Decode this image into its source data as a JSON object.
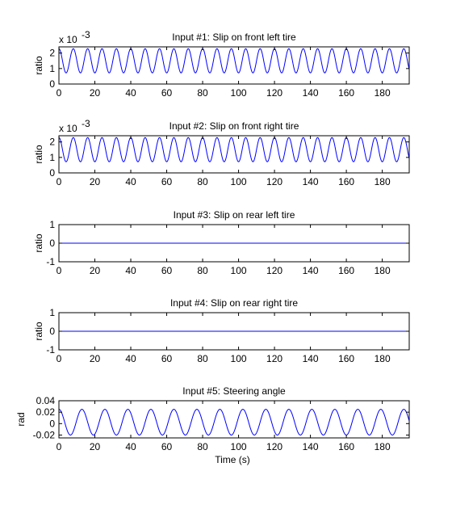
{
  "chart_data": [
    {
      "type": "line",
      "title": "Input #1: Slip on front left tire",
      "ylabel": "ratio",
      "xlabel": "",
      "exponent_label": "x 10",
      "exponent_power": "-3",
      "xlim": [
        0,
        195
      ],
      "ylim": [
        0,
        2.4
      ],
      "xticks": [
        0,
        20,
        40,
        60,
        80,
        100,
        120,
        140,
        160,
        180
      ],
      "yticks": [
        0,
        1,
        2
      ],
      "series": [
        {
          "color": "#0000ff",
          "waveform": {
            "kind": "sine",
            "offset": 1.5,
            "amplitude": 0.78,
            "period": 8.0,
            "phase_deg": 90,
            "x_start": 0,
            "x_end": 195
          }
        }
      ],
      "grid": false
    },
    {
      "type": "line",
      "title": "Input #2: Slip on front right tire",
      "ylabel": "ratio",
      "xlabel": "",
      "exponent_label": "x 10",
      "exponent_power": "-3",
      "xlim": [
        0,
        195
      ],
      "ylim": [
        0,
        2.4
      ],
      "xticks": [
        0,
        20,
        40,
        60,
        80,
        100,
        120,
        140,
        160,
        180
      ],
      "yticks": [
        0,
        1,
        2
      ],
      "series": [
        {
          "color": "#0000ff",
          "waveform": {
            "kind": "sine",
            "offset": 1.5,
            "amplitude": 0.78,
            "period": 8.0,
            "phase_deg": 90,
            "x_start": 0,
            "x_end": 195
          }
        }
      ],
      "grid": false
    },
    {
      "type": "line",
      "title": "Input #3: Slip on rear left tire",
      "ylabel": "ratio",
      "xlabel": "",
      "xlim": [
        0,
        195
      ],
      "ylim": [
        -1,
        1
      ],
      "xticks": [
        0,
        20,
        40,
        60,
        80,
        100,
        120,
        140,
        160,
        180
      ],
      "yticks": [
        -1,
        0,
        1
      ],
      "series": [
        {
          "color": "#0000ff",
          "waveform": {
            "kind": "constant",
            "value": 0,
            "x_start": 0,
            "x_end": 195
          }
        }
      ],
      "grid": false
    },
    {
      "type": "line",
      "title": "Input #4: Slip on rear right tire",
      "ylabel": "ratio",
      "xlabel": "",
      "xlim": [
        0,
        195
      ],
      "ylim": [
        -1,
        1
      ],
      "xticks": [
        0,
        20,
        40,
        60,
        80,
        100,
        120,
        140,
        160,
        180
      ],
      "yticks": [
        -1,
        0,
        1
      ],
      "series": [
        {
          "color": "#0000ff",
          "waveform": {
            "kind": "constant",
            "value": 0,
            "x_start": 0,
            "x_end": 195
          }
        }
      ],
      "grid": false
    },
    {
      "type": "line",
      "title": "Input #5: Steering angle",
      "ylabel": "rad",
      "xlabel": "Time (s)",
      "xlim": [
        0,
        195
      ],
      "ylim": [
        -0.025,
        0.04
      ],
      "xticks": [
        0,
        20,
        40,
        60,
        80,
        100,
        120,
        140,
        160,
        180
      ],
      "yticks": [
        -0.02,
        0,
        0.02,
        0.04
      ],
      "ytick_labels": [
        "-0.02",
        "0",
        "0.02",
        "0.04"
      ],
      "series": [
        {
          "color": "#0000ff",
          "waveform": {
            "kind": "sine",
            "offset": 0.0025,
            "amplitude": 0.0225,
            "period": 12.8,
            "phase_deg": 90,
            "x_start": 0,
            "x_end": 195
          }
        }
      ],
      "grid": false
    }
  ]
}
